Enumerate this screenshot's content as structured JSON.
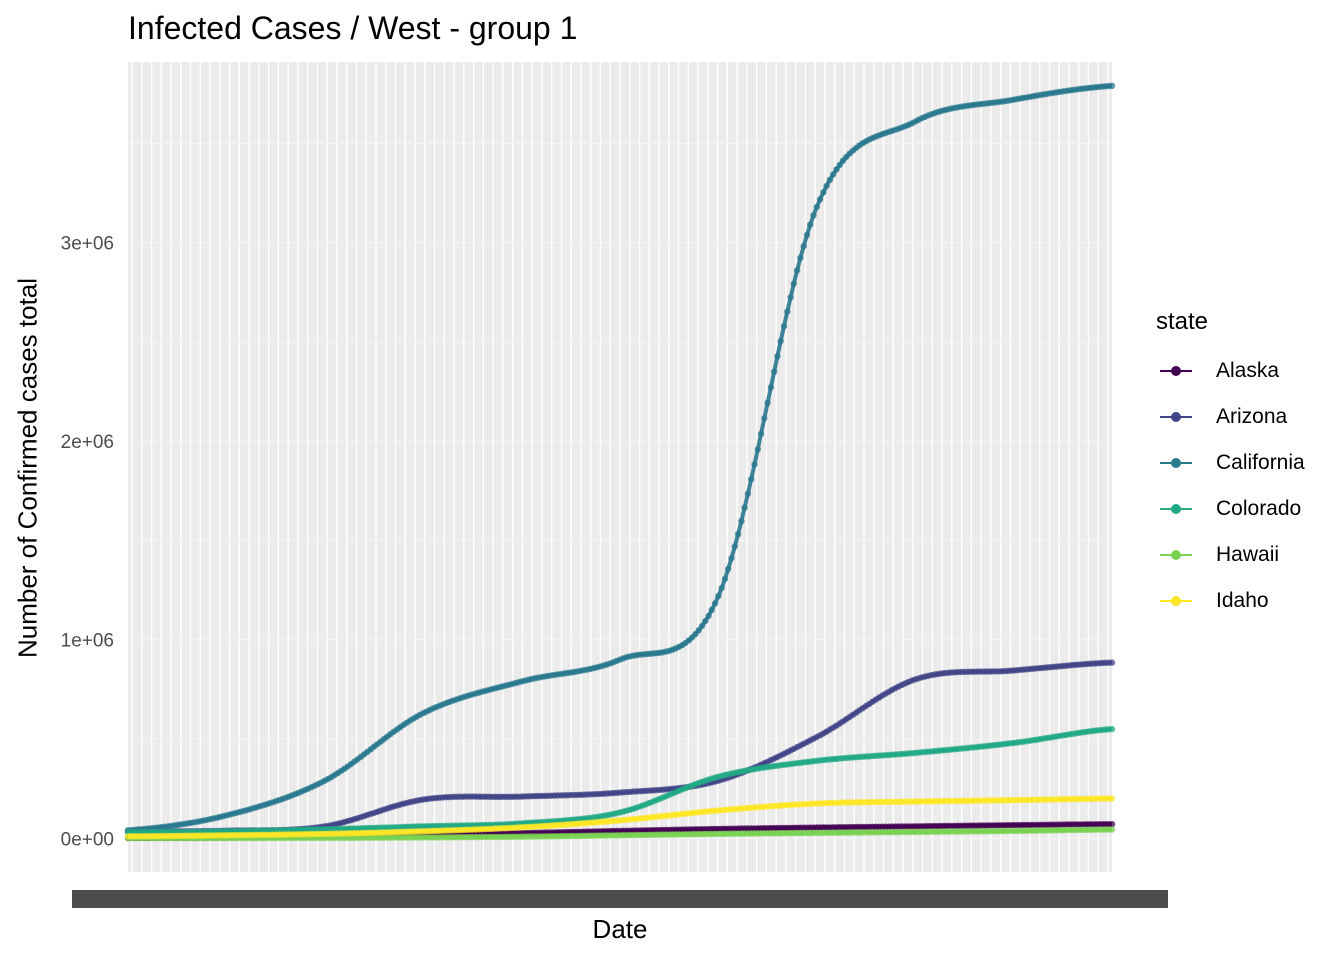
{
  "chart_data": {
    "type": "line",
    "title": "Infected Cases / West - group 1",
    "xlabel": "Date",
    "ylabel": "Number of Confirmed cases total",
    "legend_title": "state",
    "legend_position": "right",
    "grid": true,
    "ylim": [
      -170000,
      3910000
    ],
    "y_ticks": [
      0,
      1000000,
      2000000,
      3000000
    ],
    "y_tick_labels": [
      "0e+00",
      "1e+06",
      "2e+06",
      "3e+06"
    ],
    "x_tick_labels_note": "overlapping daily date labels (illegible)",
    "x_index": [
      0,
      10,
      20,
      30,
      40,
      50,
      60,
      70,
      80,
      90,
      100
    ],
    "series": [
      {
        "name": "Alaska",
        "color": "#440154",
        "values": [
          2000,
          5000,
          10000,
          18000,
          26000,
          37000,
          47000,
          54000,
          60000,
          66000,
          71000
        ]
      },
      {
        "name": "Arizona",
        "color": "#414487",
        "values": [
          35000,
          38000,
          60000,
          195000,
          210000,
          230000,
          290000,
          510000,
          800000,
          845000,
          885000
        ]
      },
      {
        "name": "California",
        "color": "#2a788e",
        "values": [
          40000,
          115000,
          290000,
          630000,
          790000,
          900000,
          1220000,
          3180000,
          3610000,
          3720000,
          3790000
        ]
      },
      {
        "name": "Colorado",
        "color": "#22a884",
        "values": [
          30000,
          35000,
          45000,
          60000,
          75000,
          130000,
          310000,
          390000,
          430000,
          480000,
          550000
        ]
      },
      {
        "name": "Hawaii",
        "color": "#7ad151",
        "values": [
          500,
          1000,
          2000,
          4000,
          8000,
          15000,
          22000,
          27000,
          32000,
          37000,
          44000
        ]
      },
      {
        "name": "Idaho",
        "color": "#fde725",
        "values": [
          10000,
          15000,
          22000,
          35000,
          55000,
          90000,
          140000,
          175000,
          185000,
          192000,
          200000
        ]
      }
    ]
  }
}
